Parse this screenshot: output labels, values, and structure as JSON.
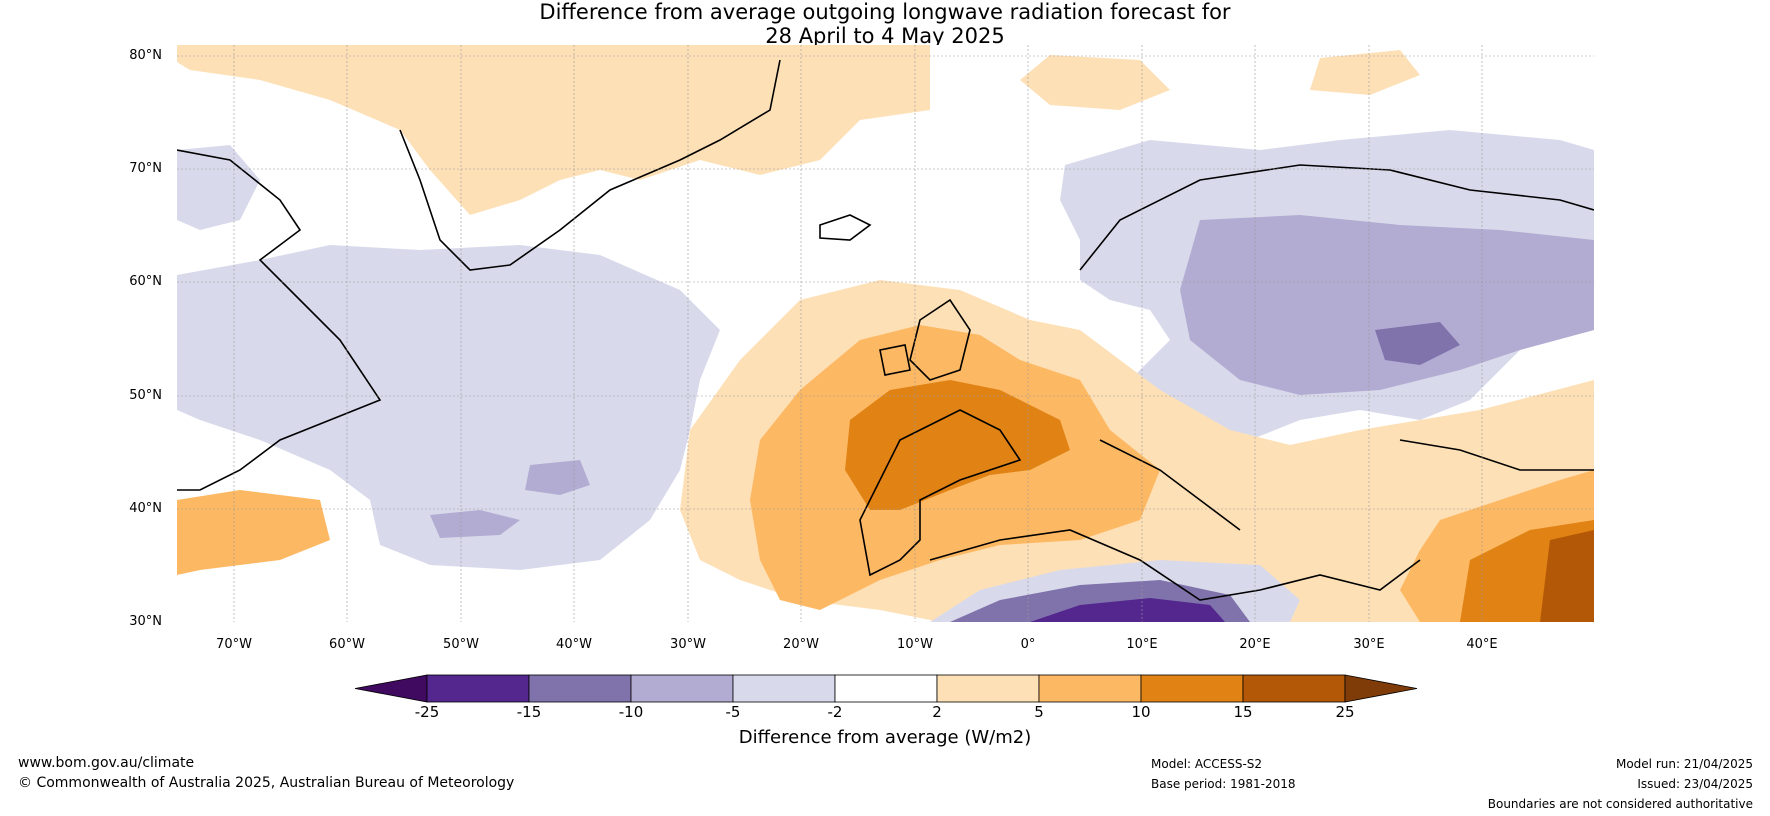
{
  "title": {
    "line1": "Difference from average outgoing longwave radiation forecast for",
    "line2": "28 April to 4 May 2025"
  },
  "axes": {
    "lat_labels": [
      "80°N",
      "70°N",
      "60°N",
      "50°N",
      "40°N",
      "30°N"
    ],
    "lon_labels": [
      "70°W",
      "60°W",
      "50°W",
      "40°W",
      "30°W",
      "20°W",
      "10°W",
      "0°",
      "10°E",
      "20°E",
      "30°E",
      "40°E"
    ]
  },
  "colorbar": {
    "ticks": [
      "-25",
      "-15",
      "-10",
      "-5",
      "-2",
      "2",
      "5",
      "10",
      "15",
      "25"
    ],
    "colors": [
      "#3f0a5f",
      "#54278f",
      "#8073ac",
      "#b2abd2",
      "#d8daeb",
      "#ffffff",
      "#fee0b6",
      "#fdb863",
      "#e08214",
      "#b35806",
      "#7f3b08"
    ],
    "label": "Difference from average (W/m2)"
  },
  "footer": {
    "website": "www.bom.gov.au/climate",
    "copyright": "© Commonwealth of Australia 2025, Australian Bureau of Meteorology",
    "model": "Model: ACCESS-S2",
    "base_period": "Base period: 1981-2018",
    "model_run": "Model run: 21/04/2025",
    "issued": "Issued: 23/04/2025",
    "disclaimer": "Boundaries are not considered authoritative"
  }
}
